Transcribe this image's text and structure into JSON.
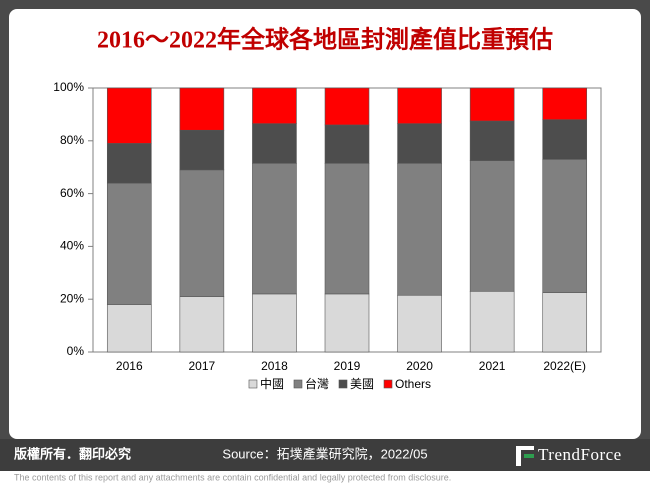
{
  "chart_data": {
    "type": "stacked_bar",
    "title": "2016～2022年全球各地區封測產值比重預估",
    "categories": [
      "2016",
      "2017",
      "2018",
      "2019",
      "2020",
      "2021",
      "2022(E)"
    ],
    "series": [
      {
        "name": "中國",
        "color": "#d9d9d9",
        "values": [
          18,
          21,
          22,
          22,
          21.5,
          23,
          22.5
        ]
      },
      {
        "name": "台灣",
        "color": "#808080",
        "values": [
          46,
          48,
          49.5,
          49.5,
          50,
          49.5,
          50.5
        ]
      },
      {
        "name": "美國",
        "color": "#4d4d4d",
        "values": [
          15,
          15,
          15,
          14.5,
          15,
          15,
          15
        ]
      },
      {
        "name": "Others",
        "color": "#ff0000",
        "values": [
          21,
          16,
          13.5,
          14,
          13.5,
          12.5,
          12
        ]
      }
    ],
    "ylim": [
      0,
      100
    ],
    "yticks": [
      {
        "value": 0,
        "label": "0%"
      },
      {
        "value": 20,
        "label": "20%"
      },
      {
        "value": 40,
        "label": "40%"
      },
      {
        "value": 60,
        "label": "60%"
      },
      {
        "value": 80,
        "label": "80%"
      },
      {
        "value": 100,
        "label": "100%"
      }
    ],
    "legend": "bottom"
  },
  "footer": {
    "copyright": "版權所有．翻印必究",
    "source": "Source：拓墣產業研究院，2022/05",
    "logo": "TrendForce",
    "disclaimer": "The contents of this report and any attachments are contain confidential and legally protected from disclosure."
  }
}
